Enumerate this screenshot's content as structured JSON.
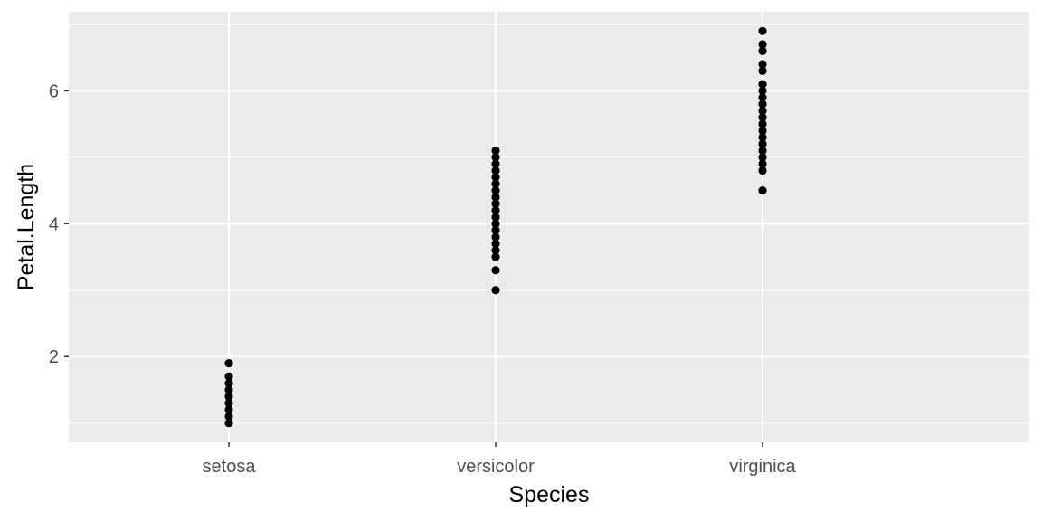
{
  "chart_data": {
    "type": "scatter",
    "xlabel": "Species",
    "ylabel": "Petal.Length",
    "categories": [
      "setosa",
      "versicolor",
      "virginica"
    ],
    "ylim": [
      0.71,
      7.19
    ],
    "y_ticks": [
      2,
      4,
      6
    ],
    "y_minor_ticks": [
      1,
      3,
      5,
      7
    ],
    "grid": true,
    "colors": {
      "panel_background": "#EBEBEB",
      "grid_line": "#FFFFFF",
      "point": "#000000",
      "tick_label": "#4D4D4D",
      "axis_title": "#000000"
    },
    "series": [
      {
        "category": "setosa",
        "y": [
          1.0,
          1.1,
          1.2,
          1.3,
          1.4,
          1.5,
          1.6,
          1.7,
          1.9
        ]
      },
      {
        "category": "versicolor",
        "y": [
          3.0,
          3.3,
          3.5,
          3.6,
          3.7,
          3.8,
          3.9,
          4.0,
          4.1,
          4.2,
          4.3,
          4.4,
          4.5,
          4.6,
          4.7,
          4.8,
          4.9,
          5.0,
          5.1
        ]
      },
      {
        "category": "virginica",
        "y": [
          4.5,
          4.8,
          4.9,
          5.0,
          5.1,
          5.2,
          5.3,
          5.4,
          5.5,
          5.6,
          5.7,
          5.8,
          5.9,
          6.0,
          6.1,
          6.3,
          6.4,
          6.6,
          6.7,
          6.9
        ]
      }
    ]
  }
}
